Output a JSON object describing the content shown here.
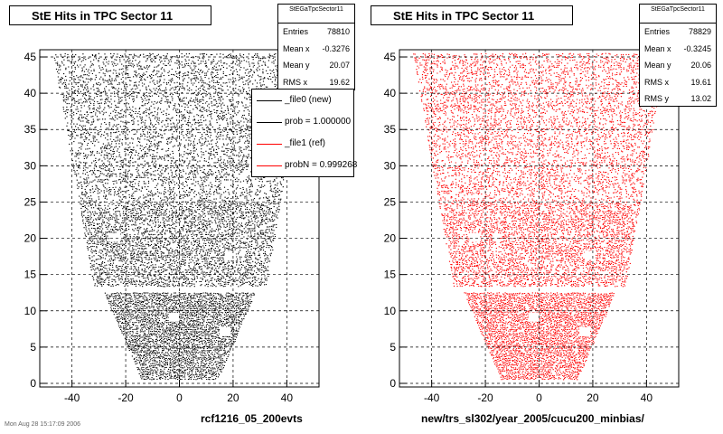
{
  "pads": [
    {
      "title": "StE Hits in TPC Sector 11",
      "stats": {
        "name": "StEGaTpcSector11",
        "rows": [
          {
            "label": "Entries",
            "value": "78810"
          },
          {
            "label": "Mean x",
            "value": "-0.3276"
          },
          {
            "label": "Mean y",
            "value": "20.07"
          },
          {
            "label": "RMS x",
            "value": "19.62"
          }
        ]
      },
      "legend": [
        {
          "text": "_file0 (new)",
          "color": "#000000"
        },
        {
          "text": "prob = 1.000000",
          "color": "#000000"
        },
        {
          "text": "_file1 (ref)",
          "color": "#ff0000"
        },
        {
          "text": "probN = 0.999268",
          "color": "#ff0000"
        }
      ],
      "xtitle": "rcf1216_05_200evts",
      "color": "#000000"
    },
    {
      "title": "StE Hits in TPC Sector 11",
      "stats": {
        "name": "StEGaTpcSector11",
        "rows": [
          {
            "label": "Entries",
            "value": "78829"
          },
          {
            "label": "Mean x",
            "value": "-0.3245"
          },
          {
            "label": "Mean y",
            "value": "20.06"
          },
          {
            "label": "RMS x",
            "value": "19.61"
          },
          {
            "label": "RMS y",
            "value": "13.02"
          }
        ]
      },
      "xtitle": "new/trs_sl302/year_2005/cucu200_minbias/",
      "color": "#ff0000"
    }
  ],
  "chart_data": [
    {
      "type": "scatter",
      "title": "StE Hits in TPC Sector 11",
      "xlabel": "rcf1216_05_200evts",
      "ylabel": "",
      "xlim": [
        -52,
        52
      ],
      "ylim": [
        -0.5,
        46
      ],
      "x_ticks": [
        -40,
        -20,
        0,
        20,
        40
      ],
      "y_ticks": [
        0,
        5,
        10,
        15,
        20,
        25,
        30,
        35,
        40,
        45
      ],
      "grid": true,
      "series": [
        {
          "name": "_file0 (new)",
          "color": "#000000"
        }
      ],
      "shape": {
        "outer_rows": [
          13.5,
          45.5
        ],
        "outer_half_width": [
          32,
          47
        ],
        "inner_rows": [
          0.5,
          12.5
        ],
        "inner_half_width": [
          14,
          28
        ]
      }
    },
    {
      "type": "scatter",
      "title": "StE Hits in TPC Sector 11",
      "xlabel": "new/trs_sl302/year_2005/cucu200_minbias/",
      "ylabel": "",
      "xlim": [
        -52,
        52
      ],
      "ylim": [
        -0.5,
        46
      ],
      "x_ticks": [
        -40,
        -20,
        0,
        20,
        40
      ],
      "y_ticks": [
        0,
        5,
        10,
        15,
        20,
        25,
        30,
        35,
        40,
        45
      ],
      "grid": true,
      "series": [
        {
          "name": "_file1 (ref)",
          "color": "#ff0000"
        }
      ],
      "shape": {
        "outer_rows": [
          13.5,
          45.5
        ],
        "outer_half_width": [
          32,
          47
        ],
        "inner_rows": [
          0.5,
          12.5
        ],
        "inner_half_width": [
          14,
          28
        ]
      }
    }
  ],
  "footer": "Mon Aug 28 15:17:09 2006"
}
